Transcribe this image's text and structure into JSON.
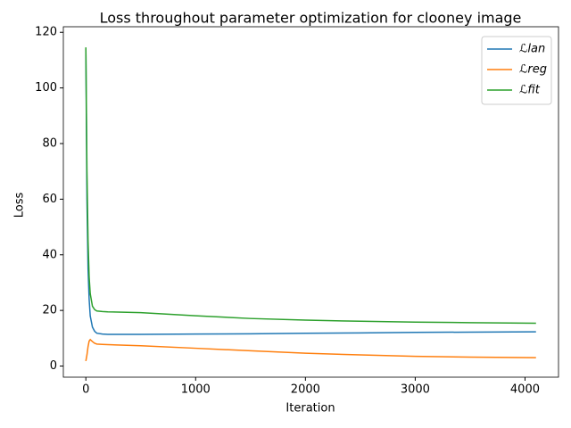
{
  "chart_data": {
    "type": "line",
    "title": "Loss throughout parameter optimization for clooney image",
    "xlabel": "Iteration",
    "ylabel": "Loss",
    "x": [
      0,
      10,
      20,
      30,
      40,
      60,
      80,
      100,
      150,
      200,
      500,
      1000,
      1500,
      2000,
      2500,
      3000,
      3500,
      4100
    ],
    "series": [
      {
        "name": "ℒlan",
        "color": "#1f77b4",
        "values": [
          114,
          60,
          35,
          24,
          18,
          14,
          12.5,
          11.8,
          11.5,
          11.4,
          11.4,
          11.5,
          11.6,
          11.8,
          11.9,
          12.1,
          12.2,
          12.3
        ]
      },
      {
        "name": "ℒreg",
        "color": "#ff7f0e",
        "values": [
          1.8,
          4,
          7,
          9,
          9.5,
          8.8,
          8.2,
          7.9,
          7.8,
          7.7,
          7.3,
          6.4,
          5.5,
          4.6,
          4.0,
          3.5,
          3.2,
          3.0
        ]
      },
      {
        "name": "ℒfit",
        "color": "#2ca02c",
        "values": [
          114.6,
          70,
          45,
          32,
          26,
          21.5,
          20.3,
          19.8,
          19.6,
          19.5,
          19.2,
          18.1,
          17.1,
          16.5,
          16.1,
          15.8,
          15.6,
          15.4
        ]
      }
    ],
    "xlim": [
      -205,
      4305
    ],
    "xticks": [
      0,
      1000,
      2000,
      3000,
      4000
    ],
    "ylim": [
      -4,
      122
    ],
    "yticks": [
      0,
      20,
      40,
      60,
      80,
      100,
      120
    ],
    "legend": "upper right"
  }
}
